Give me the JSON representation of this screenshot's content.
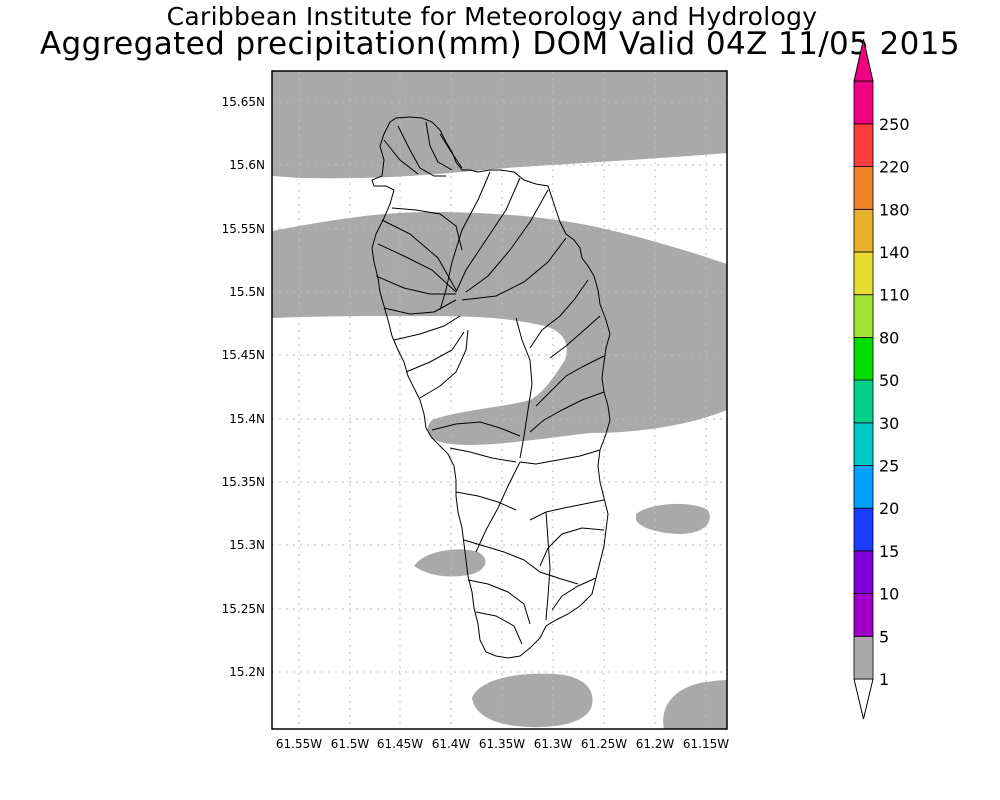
{
  "header": {
    "title_line1": "Caribbean Institute for Meteorology and Hydrology",
    "title_line2": "Aggregated precipitation(mm) DOM Valid 04Z 11/05 2015"
  },
  "map": {
    "lon_labels": [
      "61.55W",
      "61.5W",
      "61.45W",
      "61.4W",
      "61.35W",
      "61.3W",
      "61.25W",
      "61.2W",
      "61.15W"
    ],
    "lat_labels": [
      "15.65N",
      "15.6N",
      "15.55N",
      "15.5N",
      "15.45N",
      "15.4N",
      "15.35N",
      "15.3N",
      "15.25N",
      "15.2N"
    ],
    "precip_fill_color": "#a9a9a9",
    "grid": true
  },
  "colorbar": {
    "levels": [
      {
        "label": "1",
        "color": "#a9a9a9"
      },
      {
        "label": "5",
        "color": "#a100c8"
      },
      {
        "label": "10",
        "color": "#8200dc"
      },
      {
        "label": "15",
        "color": "#1e3cff"
      },
      {
        "label": "20",
        "color": "#00a0ff"
      },
      {
        "label": "25",
        "color": "#00c8c8"
      },
      {
        "label": "30",
        "color": "#00d28c"
      },
      {
        "label": "50",
        "color": "#00dc00"
      },
      {
        "label": "80",
        "color": "#a0e632"
      },
      {
        "label": "110",
        "color": "#e6dc32"
      },
      {
        "label": "140",
        "color": "#e6af2d"
      },
      {
        "label": "180",
        "color": "#f08228"
      },
      {
        "label": "220",
        "color": "#fa3c3c"
      },
      {
        "label": "250",
        "color": "#f00082"
      }
    ],
    "min_arrow_color": "#ffffff",
    "max_arrow_color": "#f00082"
  }
}
